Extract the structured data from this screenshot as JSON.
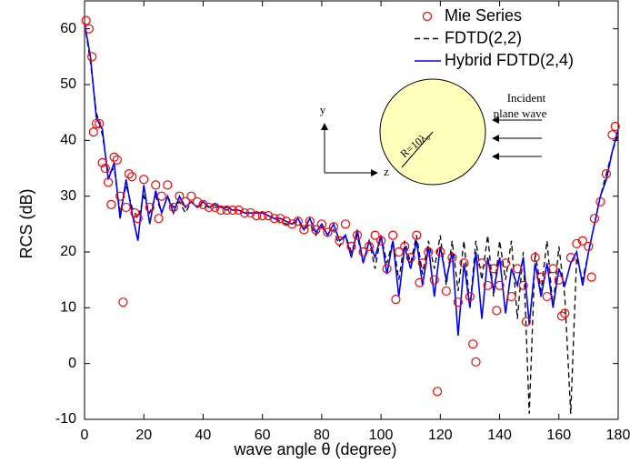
{
  "chart_data": {
    "type": "line",
    "xlabel": "wave angle θ (degree)",
    "ylabel": "RCS (dB)",
    "xlim": [
      0,
      180
    ],
    "ylim": [
      -10,
      65
    ],
    "xticks": [
      0,
      20,
      40,
      60,
      80,
      100,
      120,
      140,
      160,
      180
    ],
    "yticks": [
      -10,
      0,
      10,
      20,
      30,
      40,
      50,
      60
    ],
    "legend": "upper-right",
    "annotations": [
      "Incident",
      "plane wave",
      "R=10λ₀",
      "y",
      "z"
    ],
    "x": [
      0,
      2,
      4,
      6,
      8,
      10,
      12,
      14,
      16,
      18,
      20,
      22,
      24,
      26,
      28,
      30,
      32,
      34,
      36,
      38,
      40,
      42,
      44,
      46,
      48,
      50,
      52,
      54,
      56,
      58,
      60,
      62,
      64,
      66,
      68,
      70,
      72,
      74,
      76,
      78,
      80,
      82,
      84,
      86,
      88,
      90,
      92,
      94,
      96,
      98,
      100,
      102,
      104,
      106,
      108,
      110,
      112,
      114,
      116,
      118,
      120,
      122,
      124,
      126,
      128,
      130,
      132,
      134,
      136,
      138,
      140,
      142,
      144,
      146,
      148,
      150,
      152,
      154,
      156,
      158,
      160,
      162,
      164,
      166,
      168,
      170,
      172,
      174,
      176,
      178,
      180
    ],
    "series": [
      {
        "name": "Mie Series",
        "color": "#ff0000",
        "style": "markers",
        "x": [
          0.5,
          1.5,
          2.5,
          3,
          4,
          5,
          6,
          7,
          8,
          9,
          10,
          11,
          12,
          13,
          14,
          15,
          16,
          17,
          18,
          20,
          22,
          24,
          25,
          26,
          28,
          30,
          32,
          34,
          36,
          38,
          40,
          42,
          44,
          46,
          48,
          50,
          52,
          54,
          56,
          58,
          60,
          62,
          64,
          66,
          68,
          70,
          72,
          74,
          76,
          78,
          80,
          82,
          84,
          86,
          88,
          90,
          92,
          94,
          96,
          98,
          100,
          102,
          104,
          105,
          106,
          108,
          110,
          112,
          113,
          114,
          116,
          118,
          119,
          120,
          122,
          124,
          126,
          128,
          130,
          131,
          132,
          134,
          136,
          138,
          139,
          140,
          142,
          144,
          146,
          148,
          149,
          152,
          154,
          156,
          158,
          160,
          161,
          162,
          164,
          166,
          168,
          170,
          171,
          172,
          174,
          176,
          178,
          179
        ],
        "values": [
          61.5,
          60,
          55,
          41.5,
          43,
          43,
          36,
          35,
          32.5,
          28.5,
          37,
          36.5,
          30,
          11,
          28,
          34,
          33.5,
          27,
          26,
          33,
          28,
          32,
          26,
          30,
          32,
          28,
          30,
          29,
          30,
          29,
          28.5,
          28,
          28,
          27.5,
          27.5,
          27.5,
          27.5,
          27,
          27,
          26.5,
          26.5,
          26.5,
          26,
          26,
          25.5,
          25,
          25.5,
          24,
          25.5,
          24,
          25,
          23.5,
          24.5,
          22,
          25,
          21,
          23,
          20,
          21,
          23,
          22,
          17,
          23,
          11.5,
          20,
          21,
          19,
          23,
          14.5,
          18,
          20,
          15,
          -5,
          20,
          13,
          19,
          11,
          18,
          12,
          3.5,
          0.3,
          18,
          14,
          17,
          9.5,
          14,
          18,
          12,
          17,
          14,
          7.5,
          19,
          15.5,
          12,
          17,
          15,
          8.5,
          9,
          19,
          21.5,
          22,
          21,
          15.5,
          26,
          29,
          34,
          41,
          42.5
        ]
      },
      {
        "name": "FDTD(2,2)",
        "color": "#000000",
        "style": "dashed",
        "values": [
          61,
          54,
          45,
          41,
          34,
          35,
          27,
          32,
          28,
          26,
          30,
          27,
          30,
          27,
          30,
          28,
          29,
          27,
          29,
          28,
          28.5,
          28,
          28,
          28,
          27.5,
          27.5,
          27.5,
          27,
          27,
          27,
          27,
          26.5,
          26,
          25.5,
          25,
          25,
          25.5,
          24,
          25,
          23,
          24.5,
          23,
          24,
          21,
          23,
          20,
          23,
          18,
          22,
          17,
          23,
          18,
          22,
          15,
          22,
          18,
          23,
          16,
          22,
          17,
          23,
          14,
          22,
          13,
          22,
          10,
          22,
          15,
          23,
          12,
          22,
          15,
          22,
          8,
          20,
          -9,
          20,
          13,
          22,
          10,
          21,
          12,
          -9,
          19,
          15,
          20,
          25,
          30,
          34,
          38,
          41
        ]
      },
      {
        "name": "Hybrid FDTD(2,4)",
        "color": "#0000ff",
        "style": "solid",
        "values": [
          61,
          55,
          44,
          42,
          33,
          36,
          26,
          33,
          27,
          22,
          32,
          25,
          31,
          27,
          30,
          27,
          30,
          28,
          29,
          28,
          29,
          28,
          28.5,
          28,
          28,
          27.5,
          27.5,
          27,
          27,
          27,
          27,
          26.5,
          26,
          26,
          25.5,
          25,
          26,
          24,
          26,
          23.5,
          25,
          23,
          25,
          22,
          23,
          19,
          24,
          18,
          22,
          19,
          23,
          16,
          22,
          12,
          21,
          17,
          22,
          14,
          21,
          12,
          21,
          15,
          20,
          5,
          18,
          10,
          20,
          8,
          19,
          13,
          19,
          9,
          17,
          14,
          19,
          7,
          18,
          12,
          18,
          10,
          17,
          14,
          18,
          20,
          14,
          20,
          25,
          30,
          33,
          38,
          42
        ]
      }
    ]
  }
}
